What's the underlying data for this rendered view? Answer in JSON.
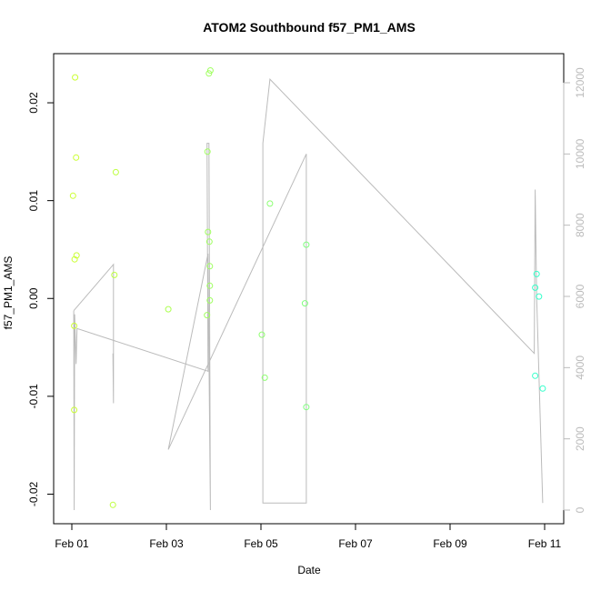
{
  "chart_data": {
    "type": "scatter",
    "title": "ATOM2 Southbound f57_PM1_AMS",
    "xlabel": "Date",
    "ylabel": "f57_PM1_AMS",
    "x_ticks": [
      "Feb 01",
      "Feb 03",
      "Feb 05",
      "Feb 07",
      "Feb 09",
      "Feb 11"
    ],
    "xlim": [
      "2016-02-01T00:00",
      "2016-02-11T00:00"
    ],
    "ylim": [
      -0.022,
      0.024
    ],
    "y_ticks": [
      "-0.02",
      "-0.01",
      "0.00",
      "0.01",
      "0.02"
    ],
    "y_right_ticks": [
      "0",
      "2000",
      "4000",
      "6000",
      "8000",
      "10000",
      "12000"
    ],
    "y_right_lim": [
      0,
      12000
    ],
    "grid": false,
    "series": [
      {
        "type": "scatter",
        "color_low": "#ccff33",
        "color_high": "#33ffcc",
        "points": [
          {
            "x": "2016-02-01T00:36",
            "y": 0.0105
          },
          {
            "x": "2016-02-01T01:12",
            "y": -0.0028
          },
          {
            "x": "2016-02-01T01:12",
            "y": -0.0114
          },
          {
            "x": "2016-02-01T01:26",
            "y": 0.004
          },
          {
            "x": "2016-02-01T01:40",
            "y": 0.0226
          },
          {
            "x": "2016-02-01T02:09",
            "y": 0.0144
          },
          {
            "x": "2016-02-01T02:24",
            "y": 0.0044
          },
          {
            "x": "2016-02-01T20:52",
            "y": -0.0211
          },
          {
            "x": "2016-02-01T21:36",
            "y": 0.0024
          },
          {
            "x": "2016-02-01T22:19",
            "y": 0.0129
          },
          {
            "x": "2016-02-03T00:57",
            "y": -0.0011
          },
          {
            "x": "2016-02-03T20:38",
            "y": -0.0017
          },
          {
            "x": "2016-02-03T20:52",
            "y": 0.015
          },
          {
            "x": "2016-02-03T21:07",
            "y": 0.0068
          },
          {
            "x": "2016-02-03T21:36",
            "y": 0.023
          },
          {
            "x": "2016-02-03T21:50",
            "y": 0.0058
          },
          {
            "x": "2016-02-03T22:04",
            "y": 0.0033
          },
          {
            "x": "2016-02-03T22:04",
            "y": 0.0013
          },
          {
            "x": "2016-02-03T22:04",
            "y": -0.0002
          },
          {
            "x": "2016-02-03T22:19",
            "y": 0.0233
          },
          {
            "x": "2016-02-05T00:28",
            "y": -0.0037
          },
          {
            "x": "2016-02-05T01:55",
            "y": -0.0081
          },
          {
            "x": "2016-02-05T04:33",
            "y": 0.0097
          },
          {
            "x": "2016-02-05T22:19",
            "y": -0.0005
          },
          {
            "x": "2016-02-05T23:02",
            "y": 0.0055
          },
          {
            "x": "2016-02-05T23:02",
            "y": -0.0111
          },
          {
            "x": "2016-02-10T19:12",
            "y": -0.0079
          },
          {
            "x": "2016-02-10T19:12",
            "y": 0.0011
          },
          {
            "x": "2016-02-10T19:55",
            "y": 0.0025
          },
          {
            "x": "2016-02-10T21:07",
            "y": 0.0002
          },
          {
            "x": "2016-02-10T23:02",
            "y": -0.0092
          }
        ]
      },
      {
        "type": "line",
        "axis": "right",
        "color": "#bbbbbb",
        "points": [
          {
            "x": "2016-02-01T00:57",
            "y": 5600
          },
          {
            "x": "2016-02-01T01:12",
            "y": 0
          },
          {
            "x": "2016-02-01T01:26",
            "y": 5500
          },
          {
            "x": "2016-02-01T02:09",
            "y": 4100
          },
          {
            "x": "2016-02-01T02:38",
            "y": 5100
          },
          {
            "x": "2016-02-03T21:07",
            "y": 3900
          },
          {
            "x": "2016-02-03T20:38",
            "y": 10300
          },
          {
            "x": "2016-02-03T21:36",
            "y": 10300
          },
          {
            "x": "2016-02-03T22:19",
            "y": 0
          },
          {
            "x": "2016-02-03T21:50",
            "y": 3000
          },
          {
            "x": "2016-02-03T21:07",
            "y": 7200
          },
          {
            "x": "2016-02-03T00:57",
            "y": 1700
          },
          {
            "x": "2016-02-05T23:02",
            "y": 10000
          },
          {
            "x": "2016-02-05T23:02",
            "y": 200
          },
          {
            "x": "2016-02-05T00:57",
            "y": 200
          },
          {
            "x": "2016-02-05T00:57",
            "y": 10300
          },
          {
            "x": "2016-02-05T04:33",
            "y": 12100
          },
          {
            "x": "2016-02-10T18:43",
            "y": 4400
          },
          {
            "x": "2016-02-10T19:12",
            "y": 9000
          },
          {
            "x": "2016-02-10T19:55",
            "y": 6000
          },
          {
            "x": "2016-02-10T23:02",
            "y": 200
          }
        ]
      },
      {
        "type": "line",
        "axis": "right",
        "color": "#bbbbbb",
        "points": [
          {
            "x": "2016-02-01T20:52",
            "y": 4400
          },
          {
            "x": "2016-02-01T21:07",
            "y": 3000
          },
          {
            "x": "2016-02-01T21:07",
            "y": 6900
          },
          {
            "x": "2016-02-01T00:57",
            "y": 5600
          }
        ]
      }
    ]
  }
}
